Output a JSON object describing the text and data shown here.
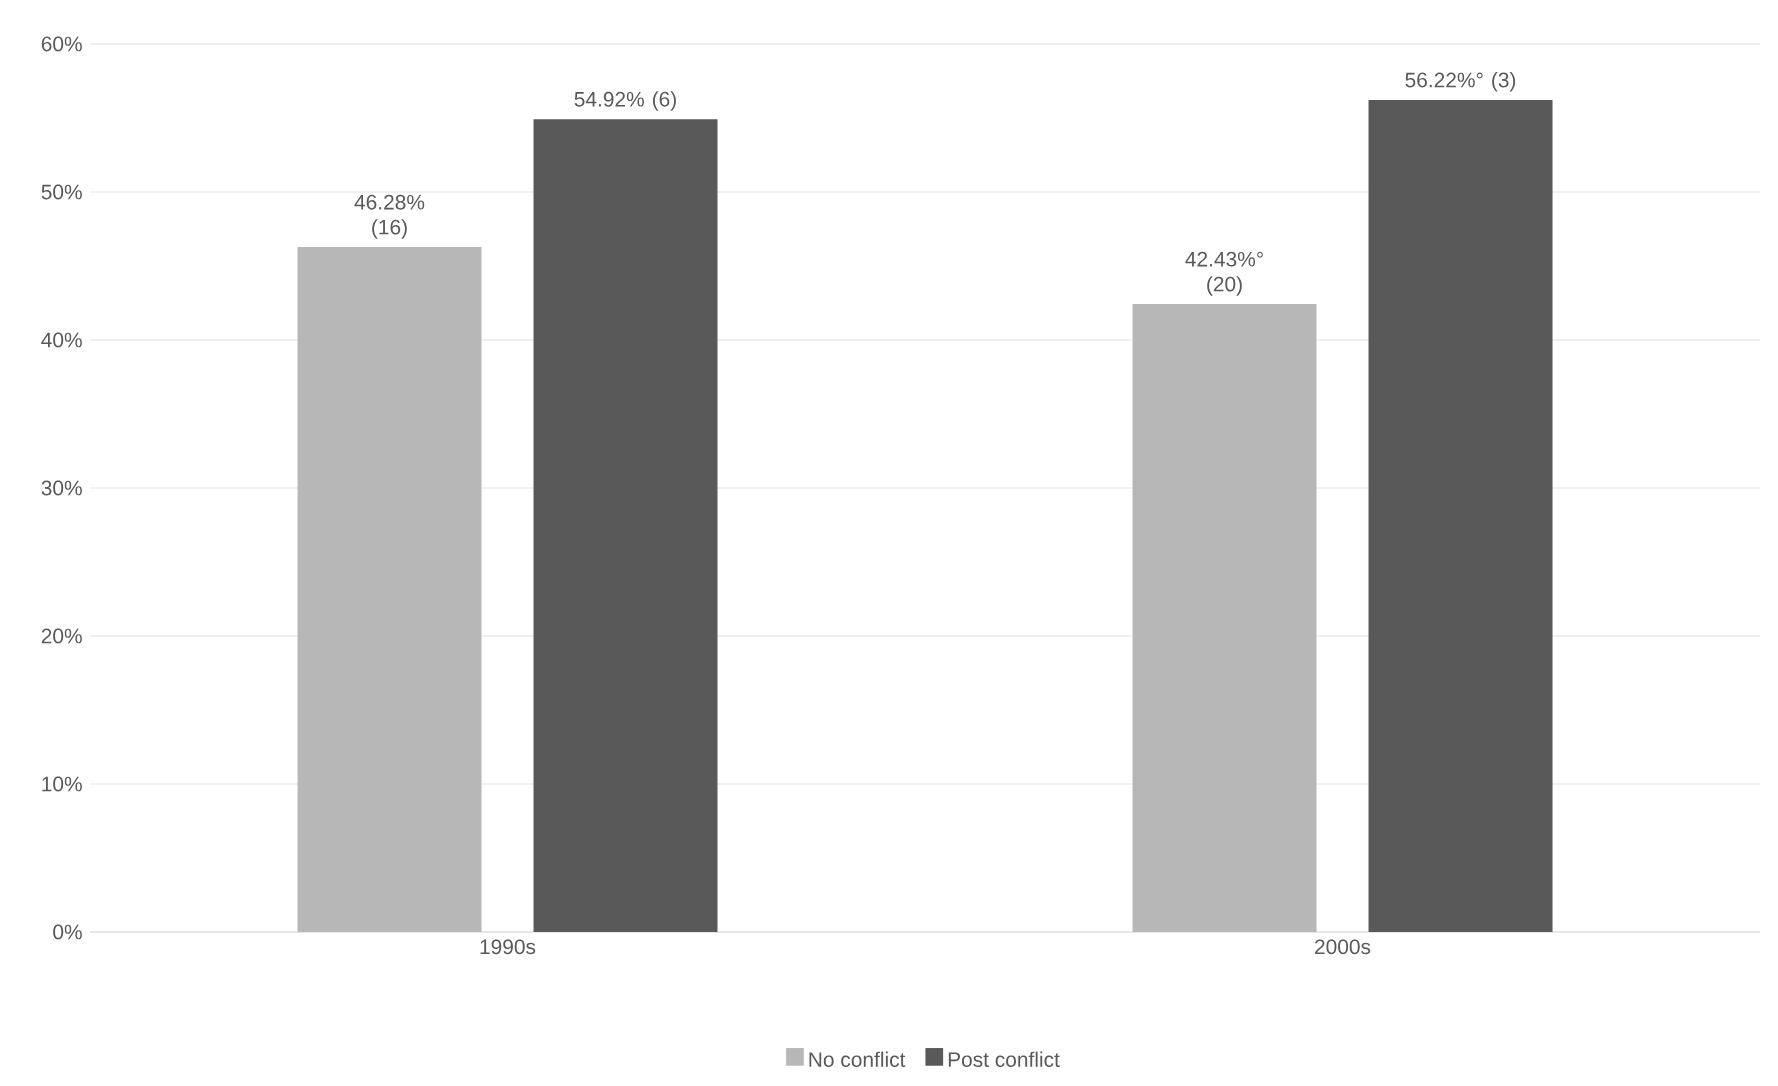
{
  "chart_data": {
    "type": "bar",
    "categories": [
      "1990s",
      "2000s"
    ],
    "series": [
      {
        "name": "No conflict",
        "color": "#b7b7b7",
        "values": [
          46.28,
          42.43
        ],
        "value_labels": [
          "46.28% (16)",
          "42.43%° (20)"
        ]
      },
      {
        "name": "Post conflict",
        "color": "#595959",
        "values": [
          54.92,
          56.22
        ],
        "value_labels": [
          "54.92% (6)",
          "56.22%° (3)"
        ]
      }
    ],
    "ylim": [
      0,
      60
    ],
    "yticks": [
      {
        "value": 0,
        "label": "0%"
      },
      {
        "value": 10,
        "label": "10%"
      },
      {
        "value": 20,
        "label": "20%"
      },
      {
        "value": 30,
        "label": "30%"
      },
      {
        "value": 40,
        "label": "40%"
      },
      {
        "value": 50,
        "label": "50%"
      },
      {
        "value": 60,
        "label": "60%"
      }
    ],
    "grid": "y",
    "legend": "bottom"
  }
}
